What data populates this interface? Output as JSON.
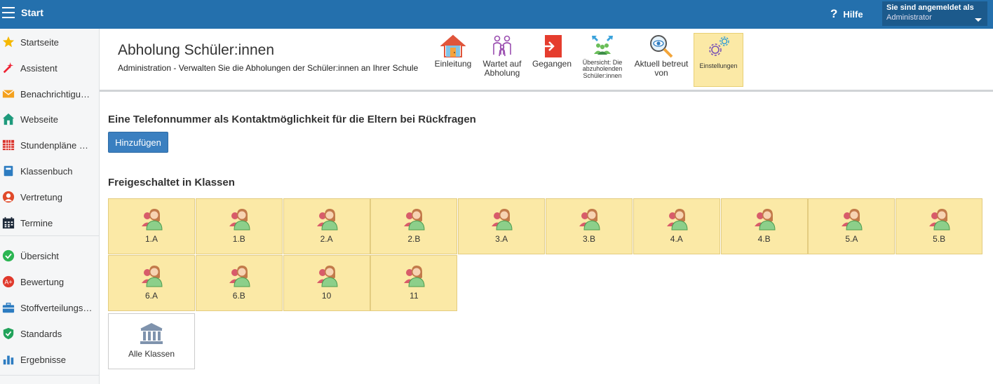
{
  "topbar": {
    "title": "Start",
    "help": "Hilfe",
    "user_line1": "Sie sind angemeldet als",
    "user_line2": "Administrator"
  },
  "sidebar": {
    "items": [
      {
        "label": "Startseite",
        "icon": "star-icon"
      },
      {
        "label": "Assistent",
        "icon": "magic-wand-icon"
      },
      {
        "label": "Benachrichtigungen",
        "icon": "envelope-icon"
      },
      {
        "label": "Webseite",
        "icon": "house-icon"
      },
      {
        "label": "Stundenpläne und Räume",
        "icon": "calendar-grid-icon"
      },
      {
        "label": "Klassenbuch",
        "icon": "book-icon"
      },
      {
        "label": "Vertretung",
        "icon": "user-substitute-icon"
      },
      {
        "label": "Termine",
        "icon": "calendar-icon"
      },
      {
        "label": "Übersicht",
        "icon": "check-circle-icon"
      },
      {
        "label": "Bewertung",
        "icon": "grade-icon"
      },
      {
        "label": "Stoffverteilungspläne",
        "icon": "briefcase-icon"
      },
      {
        "label": "Standards",
        "icon": "shield-check-icon"
      },
      {
        "label": "Ergebnisse",
        "icon": "bar-chart-icon"
      }
    ]
  },
  "header": {
    "title": "Abholung Schüler:innen",
    "subtitle": "Administration - Verwalten Sie die Abholungen der Schüler:innen an Ihrer Schule",
    "tools": [
      {
        "label": "Einleitung",
        "icon": "home-door-icon"
      },
      {
        "label": "Wartet auf Abholung",
        "icon": "family-icon"
      },
      {
        "label": "Gegangen",
        "icon": "exit-icon"
      },
      {
        "label": "Übersicht: Die abzuholenden Schüler:innen",
        "icon": "group-arrows-icon"
      },
      {
        "label": "Aktuell betreut von",
        "icon": "magnifier-eye-icon"
      },
      {
        "label": "Einstellungen",
        "icon": "gears-icon"
      }
    ]
  },
  "main": {
    "phone_heading": "Eine Telefonnummer als Kontaktmöglichkeit für die Eltern bei Rückfragen",
    "add_button": "Hinzufügen",
    "classes_heading": "Freigeschaltet in Klassen",
    "classes": [
      "1.A",
      "1.B",
      "2.A",
      "2.B",
      "3.A",
      "3.B",
      "4.A",
      "4.B",
      "5.A",
      "5.B",
      "6.A",
      "6.B",
      "10",
      "11"
    ],
    "all_classes": "Alle Klassen"
  },
  "colors": {
    "topbar": "#2470ad",
    "tile": "#fbe9a6",
    "accent_button": "#3a7fc0"
  }
}
